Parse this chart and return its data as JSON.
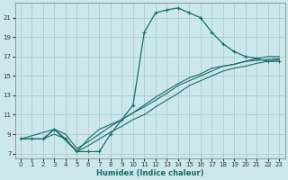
{
  "xlabel": "Humidex (Indice chaleur)",
  "bg_color": "#cce8ec",
  "grid_color": "#aacccc",
  "line_color": "#1a6b6a",
  "xlim": [
    -0.5,
    23.5
  ],
  "ylim": [
    6.5,
    22.5
  ],
  "yticks": [
    7,
    9,
    11,
    13,
    15,
    17,
    19,
    21
  ],
  "xticks": [
    0,
    1,
    2,
    3,
    4,
    5,
    6,
    7,
    8,
    9,
    10,
    11,
    12,
    13,
    14,
    15,
    16,
    17,
    18,
    19,
    20,
    21,
    22,
    23
  ],
  "curve_x": [
    0,
    1,
    2,
    3,
    4,
    5,
    6,
    7,
    8,
    9,
    10,
    11,
    12,
    13,
    14,
    15,
    16,
    17,
    18,
    19,
    20,
    21,
    22,
    23
  ],
  "curve_y": [
    8.5,
    8.5,
    8.5,
    9.5,
    8.5,
    7.2,
    7.2,
    7.2,
    9.0,
    10.5,
    12.0,
    19.5,
    21.5,
    21.8,
    22.0,
    21.5,
    21.0,
    19.5,
    18.3,
    17.5,
    17.0,
    16.8,
    16.5,
    16.5
  ],
  "line1_x": [
    0,
    1,
    2,
    3,
    4,
    5,
    6,
    7,
    8,
    9,
    10,
    11,
    12,
    13,
    14,
    15,
    16,
    17,
    18,
    19,
    20,
    21,
    22,
    23
  ],
  "line1_y": [
    8.5,
    8.5,
    8.5,
    9.0,
    8.5,
    7.2,
    7.8,
    8.5,
    9.2,
    9.8,
    10.5,
    11.0,
    11.8,
    12.5,
    13.2,
    14.0,
    14.5,
    15.0,
    15.5,
    15.8,
    16.0,
    16.3,
    16.5,
    16.7
  ],
  "line2_x": [
    0,
    1,
    2,
    3,
    4,
    5,
    6,
    7,
    8,
    9,
    10,
    11,
    12,
    13,
    14,
    15,
    16,
    17,
    18,
    19,
    20,
    21,
    22,
    23
  ],
  "line2_y": [
    8.5,
    8.5,
    8.5,
    9.5,
    9.0,
    7.5,
    8.2,
    9.0,
    9.8,
    10.5,
    11.2,
    11.8,
    12.5,
    13.2,
    14.0,
    14.5,
    15.0,
    15.5,
    16.0,
    16.2,
    16.5,
    16.6,
    16.7,
    16.8
  ],
  "line3_x": [
    0,
    3,
    5,
    6,
    7,
    8,
    9,
    10,
    11,
    12,
    13,
    14,
    15,
    16,
    17,
    18,
    19,
    20,
    21,
    22,
    23
  ],
  "line3_y": [
    8.5,
    9.5,
    7.2,
    8.5,
    9.5,
    10.0,
    10.5,
    11.2,
    12.0,
    12.8,
    13.5,
    14.2,
    14.8,
    15.2,
    15.8,
    16.0,
    16.2,
    16.5,
    16.8,
    17.0,
    17.0
  ]
}
